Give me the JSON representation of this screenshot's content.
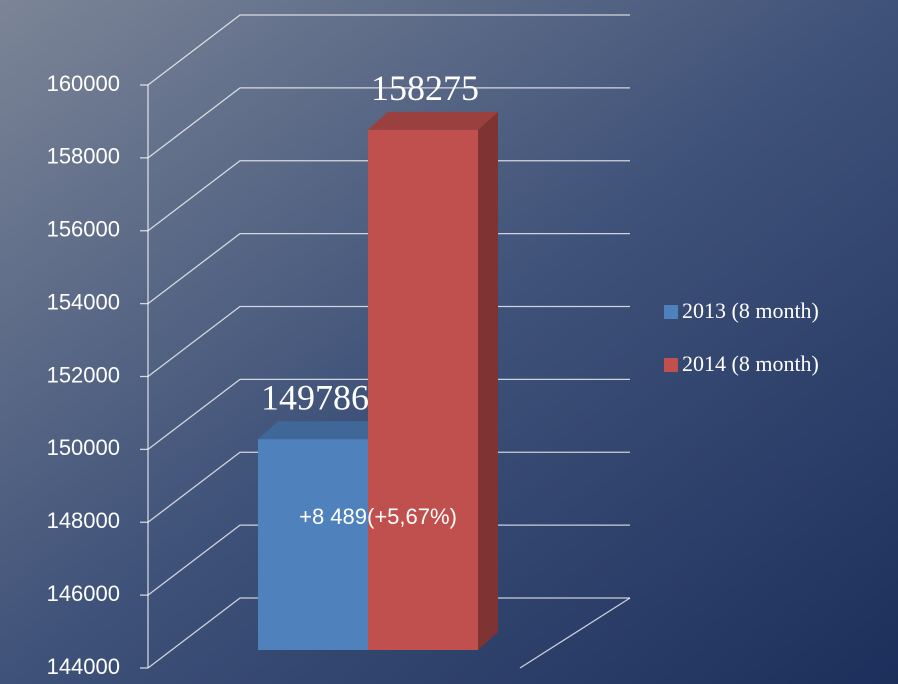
{
  "chart_data": {
    "type": "bar3d",
    "categories": [
      null
    ],
    "series": [
      {
        "name": "2013 (8 month)",
        "color": "#4f81bd",
        "values": [
          149786
        ]
      },
      {
        "name": "2014 (8 month)",
        "color": "#c0504d",
        "values": [
          158275
        ]
      }
    ],
    "ylim": [
      144000,
      160000
    ],
    "yticks": [
      144000,
      146000,
      148000,
      150000,
      152000,
      154000,
      156000,
      158000,
      160000
    ],
    "grid": true,
    "legend": "right",
    "annotation": "+8 489(+5,67%)"
  }
}
